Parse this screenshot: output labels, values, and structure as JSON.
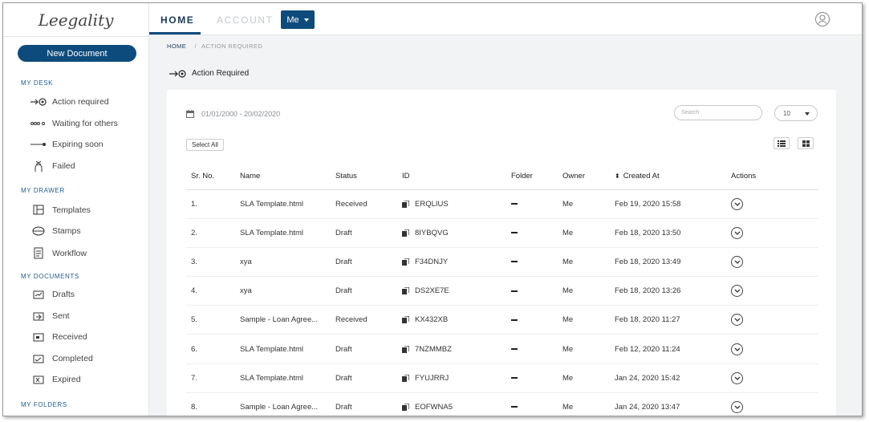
{
  "app": {
    "logo_text": "Leegality"
  },
  "sidebar": {
    "new_document": "New Document",
    "sections": [
      {
        "label": "MY DESK",
        "items": [
          {
            "label": "Action required",
            "icon": "action-required-icon"
          },
          {
            "label": "Waiting for others",
            "icon": "waiting-icon"
          },
          {
            "label": "Expiring soon",
            "icon": "expiring-icon"
          },
          {
            "label": "Failed",
            "icon": "failed-icon"
          }
        ]
      },
      {
        "label": "MY DRAWER",
        "items": [
          {
            "label": "Templates",
            "icon": "templates-icon"
          },
          {
            "label": "Stamps",
            "icon": "stamps-icon"
          },
          {
            "label": "Workflow",
            "icon": "workflow-icon"
          }
        ]
      },
      {
        "label": "MY DOCUMENTS",
        "items": [
          {
            "label": "Drafts",
            "icon": "drafts-icon"
          },
          {
            "label": "Sent",
            "icon": "sent-icon"
          },
          {
            "label": "Received",
            "icon": "received-icon"
          },
          {
            "label": "Completed",
            "icon": "completed-icon"
          },
          {
            "label": "Expired",
            "icon": "expired-icon"
          }
        ]
      },
      {
        "label": "MY FOLDERS",
        "items": []
      }
    ]
  },
  "topbar": {
    "tabs": [
      "HOME",
      "ACCOUNT"
    ],
    "user_button": "Me"
  },
  "breadcrumb": {
    "home": "HOME",
    "separator": "/",
    "current": "ACTION REQUIRED"
  },
  "page": {
    "title": "Action Required"
  },
  "filters": {
    "date_range": "01/01/2000 - 20/02/2020",
    "search_placeholder": "Search",
    "page_size": "10",
    "select_all": "Select All"
  },
  "table": {
    "headers": [
      "Sr. No.",
      "Name",
      "Status",
      "ID",
      "Folder",
      "Owner",
      "Created At",
      "Actions"
    ],
    "rows": [
      {
        "sr": "1.",
        "name": "SLA Template.html",
        "status": "Received",
        "id": "ERQLIUS",
        "owner": "Me",
        "created": "Feb 19, 2020 15:58"
      },
      {
        "sr": "2.",
        "name": "SLA Template.html",
        "status": "Draft",
        "id": "8IYBQVG",
        "owner": "Me",
        "created": "Feb 18, 2020 13:50"
      },
      {
        "sr": "3.",
        "name": "xya",
        "status": "Draft",
        "id": "F34DNJY",
        "owner": "Me",
        "created": "Feb 18, 2020 13:49"
      },
      {
        "sr": "4.",
        "name": "xya",
        "status": "Draft",
        "id": "DS2XE7E",
        "owner": "Me",
        "created": "Feb 18, 2020 13:26"
      },
      {
        "sr": "5.",
        "name": "Sample - Loan Agree...",
        "status": "Received",
        "id": "KX432XB",
        "owner": "Me",
        "created": "Feb 18, 2020 11:27"
      },
      {
        "sr": "6.",
        "name": "SLA Template.html",
        "status": "Draft",
        "id": "7NZMMBZ",
        "owner": "Me",
        "created": "Feb 12, 2020 11:24"
      },
      {
        "sr": "7.",
        "name": "SLA Template.html",
        "status": "Draft",
        "id": "FYUJRRJ",
        "owner": "Me",
        "created": "Jan 24, 2020 15:42"
      },
      {
        "sr": "8.",
        "name": "Sample - Loan Agree...",
        "status": "Draft",
        "id": "EOFWNA5",
        "owner": "Me",
        "created": "Jan 24, 2020 13:47"
      }
    ]
  },
  "colors": {
    "brand": "#0d4b7c",
    "section_label": "#1f5c8f"
  }
}
